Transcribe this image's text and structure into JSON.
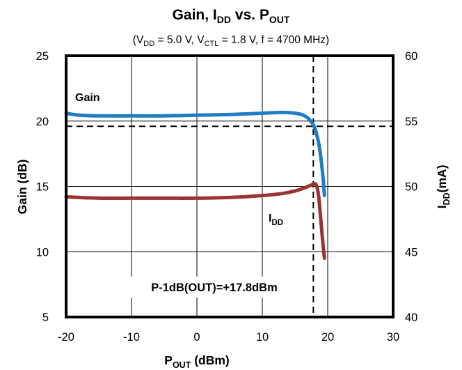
{
  "chart_data": {
    "type": "line",
    "title": {
      "main": "Gain, I",
      "main_sub": "DD",
      "mid": " vs. P",
      "mid_sub": "OUT"
    },
    "subtitle": {
      "p1": "(V",
      "s1": "DD",
      "p2": " = 5.0 V, V",
      "s2": "CTL",
      "p3": " = 1.8 V,  f = 4700 MHz)"
    },
    "xlabel": {
      "main": "P",
      "sub": "OUT",
      "rest": " (dBm)"
    },
    "ylabel_left": "Gain (dB)",
    "ylabel_right": {
      "main": "I",
      "sub": "DD",
      "rest": "(mA)"
    },
    "xlim": [
      -20,
      30
    ],
    "ylim_left": [
      5,
      25
    ],
    "ylim_right": [
      40,
      60
    ],
    "x_ticks": [
      "-20",
      "-10",
      "0",
      "10",
      "20",
      "30"
    ],
    "y_left_ticks": [
      "5",
      "10",
      "15",
      "20",
      "25"
    ],
    "y_right_ticks": [
      "40",
      "45",
      "50",
      "55",
      "60"
    ],
    "grid": true,
    "series": [
      {
        "name": "Gain",
        "axis": "left",
        "color": "#1f7dc4",
        "x": [
          -20,
          -18,
          -15,
          -10,
          -5,
          0,
          5,
          10,
          12,
          14,
          15,
          16,
          16.8,
          17.4,
          17.9,
          18.3,
          18.7,
          19.0,
          19.3,
          19.5
        ],
        "y": [
          20.6,
          20.45,
          20.4,
          20.4,
          20.4,
          20.45,
          20.5,
          20.6,
          20.65,
          20.65,
          20.6,
          20.5,
          20.3,
          20.0,
          19.6,
          19.0,
          18.1,
          17.0,
          15.6,
          14.3
        ]
      },
      {
        "name": "I_DD",
        "label_main": "I",
        "label_sub": "DD",
        "axis": "right",
        "color": "#9b3333",
        "x": [
          -20,
          -15,
          -10,
          -5,
          0,
          5,
          10,
          13,
          15,
          16.5,
          17.5,
          18.0,
          18.3,
          18.6,
          18.9,
          19.2,
          19.5
        ],
        "y": [
          49.2,
          49.1,
          49.1,
          49.1,
          49.1,
          49.15,
          49.3,
          49.45,
          49.65,
          49.9,
          50.1,
          50.2,
          50.05,
          49.3,
          47.7,
          46.0,
          44.5
        ]
      }
    ],
    "reference_lines": {
      "p1db_x": 17.8,
      "gain_minus_1db": 19.6
    },
    "annotation": "P-1dB(OUT)=+17.8dBm"
  }
}
